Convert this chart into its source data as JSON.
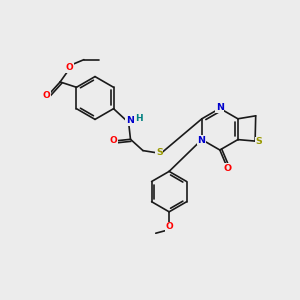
{
  "background_color": "#ececec",
  "bond_color": "#1a1a1a",
  "atom_colors": {
    "O": "#ff0000",
    "N": "#0000cc",
    "S": "#999900",
    "H": "#008080",
    "C": "#1a1a1a"
  }
}
